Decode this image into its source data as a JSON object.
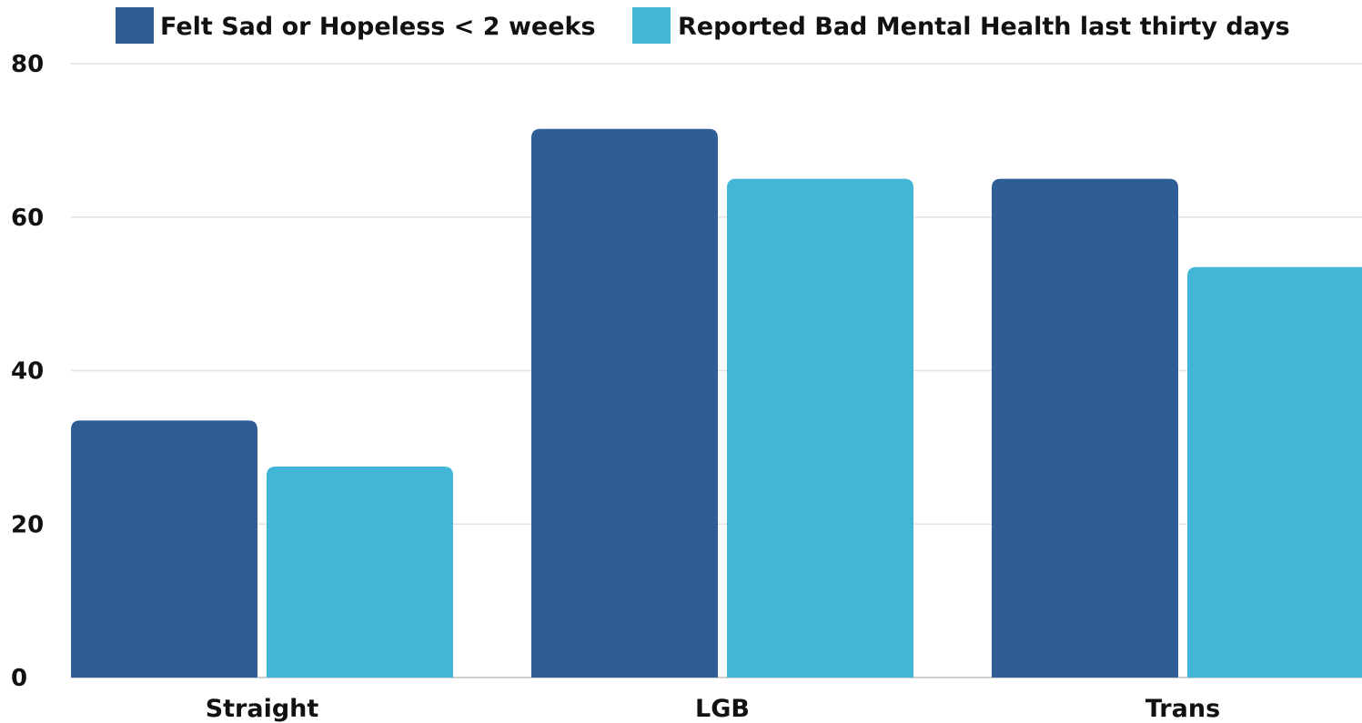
{
  "chart_data": {
    "type": "bar",
    "title": "",
    "xlabel": "",
    "ylabel": "",
    "categories": [
      "Straight",
      "LGB",
      "Trans"
    ],
    "series": [
      {
        "name": "Felt Sad or Hopeless < 2 weeks",
        "color": "#2f5d95",
        "values": [
          33.5,
          71.5,
          65
        ]
      },
      {
        "name": "Reported Bad Mental Health last thirty days",
        "color": "#41b6d6",
        "values": [
          27.5,
          65,
          53.5
        ]
      }
    ],
    "ylim": [
      0,
      80
    ],
    "yticks": [
      "0",
      "20",
      "40",
      "60",
      "80"
    ],
    "grid": true,
    "legend_position": "top"
  }
}
